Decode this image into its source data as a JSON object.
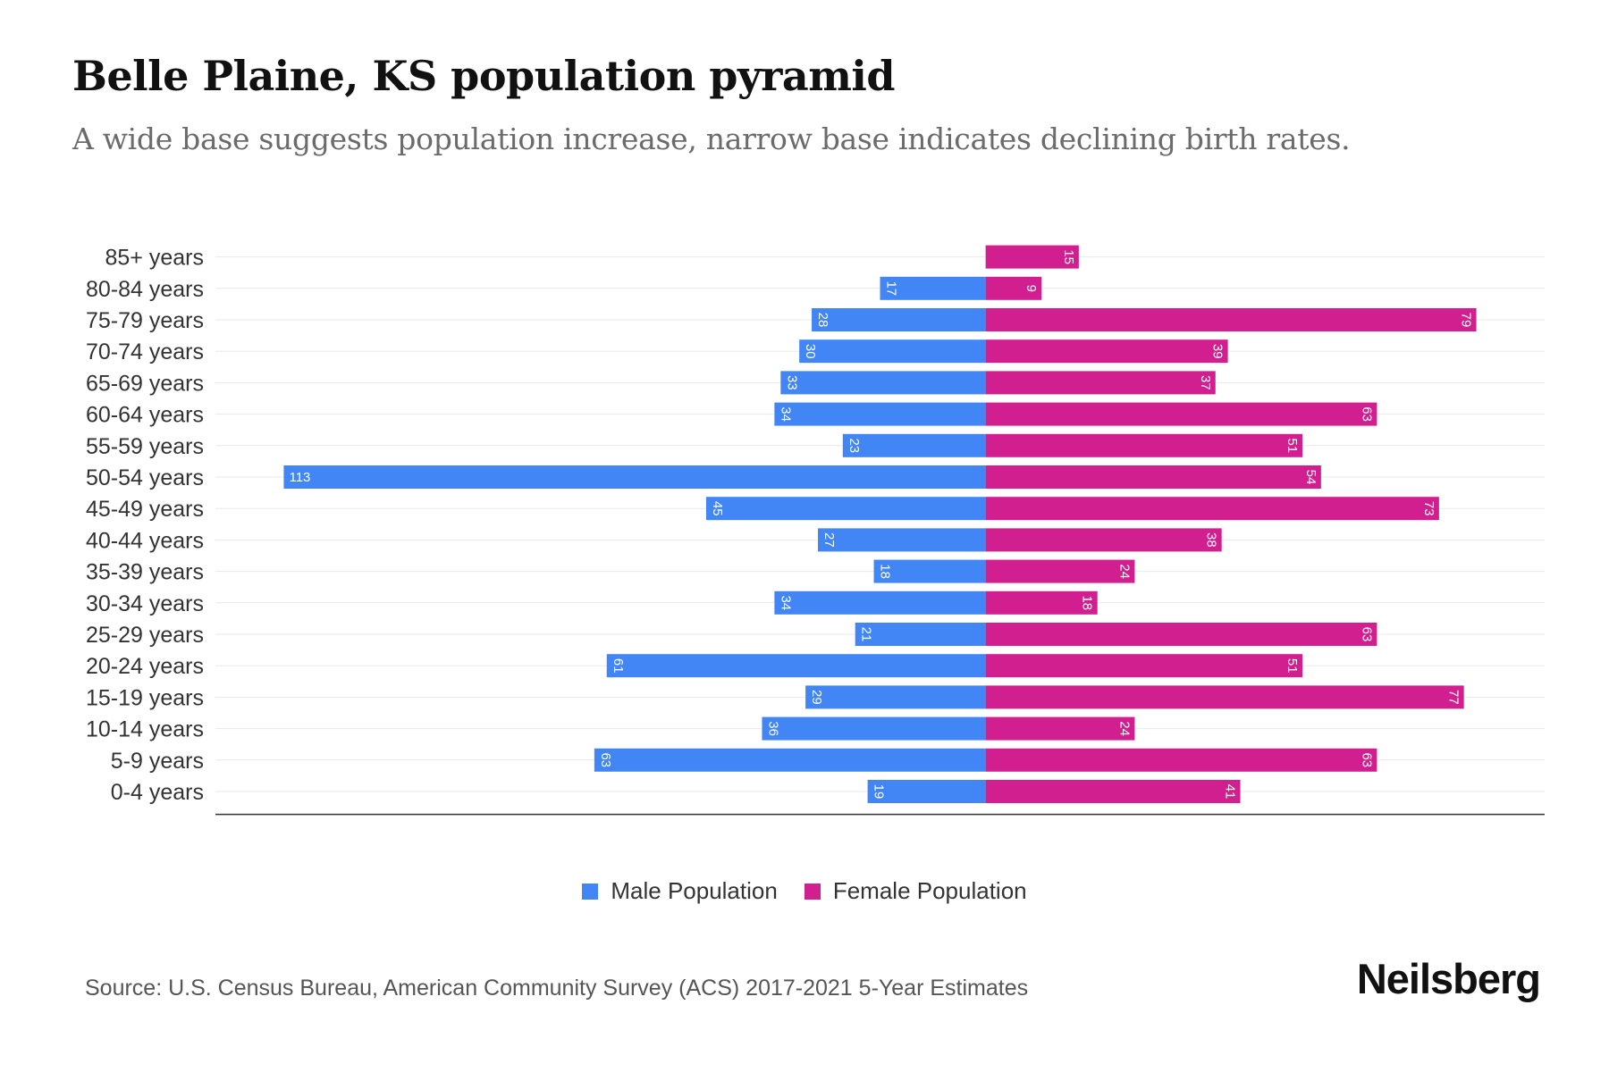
{
  "colors": {
    "male": "#4285f4",
    "female": "#d11f8f",
    "grid": "#e9e9e9",
    "axis": "#333333"
  },
  "brand": "Neilsberg",
  "source": "Source: U.S. Census Bureau, American Community Survey (ACS) 2017-2021 5-Year Estimates",
  "chart_data": {
    "type": "bar",
    "orientation": "horizontal-diverging",
    "title": "Belle Plaine, KS population pyramid",
    "subtitle": "A wide base suggests population increase, narrow base indicates declining birth rates.",
    "categories": [
      "85+ years",
      "80-84 years",
      "75-79 years",
      "70-74 years",
      "65-69 years",
      "60-64 years",
      "55-59 years",
      "50-54 years",
      "45-49 years",
      "40-44 years",
      "35-39 years",
      "30-34 years",
      "25-29 years",
      "20-24 years",
      "15-19 years",
      "10-14 years",
      "5-9 years",
      "0-4 years"
    ],
    "series": [
      {
        "name": "Male Population",
        "values": [
          0,
          17,
          28,
          30,
          33,
          34,
          23,
          113,
          45,
          27,
          18,
          34,
          21,
          61,
          29,
          36,
          63,
          19
        ]
      },
      {
        "name": "Female Population",
        "values": [
          15,
          9,
          79,
          39,
          37,
          63,
          51,
          54,
          73,
          38,
          24,
          18,
          63,
          51,
          77,
          24,
          63,
          41
        ]
      }
    ],
    "xlim": [
      -124,
      90
    ],
    "legend": "bottom-center",
    "grid": true
  }
}
